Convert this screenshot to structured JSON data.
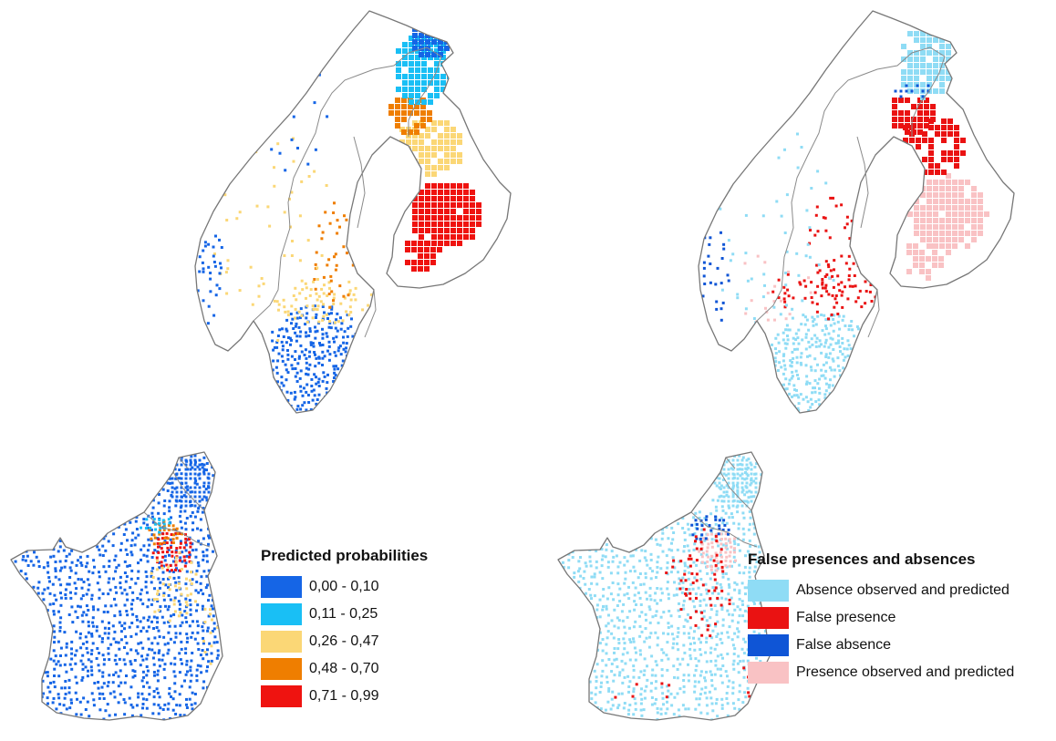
{
  "legends": {
    "predicted": {
      "title": "Predicted probabilities",
      "items": [
        {
          "label": "0,00 - 0,10",
          "color": "#1565e6"
        },
        {
          "label": "0,11 - 0,25",
          "color": "#19bff5"
        },
        {
          "label": "0,26 - 0,47",
          "color": "#fbd776"
        },
        {
          "label": "0,48 - 0,70",
          "color": "#ef7e00"
        },
        {
          "label": "0,71 - 0,99",
          "color": "#ef1310"
        }
      ]
    },
    "errors": {
      "title": "False presences and absences",
      "items": [
        {
          "label": "Absence observed and predicted",
          "color": "#8fdcf5"
        },
        {
          "label": "False presence",
          "color": "#ea1212"
        },
        {
          "label": "False absence",
          "color": "#0f55d6"
        },
        {
          "label": "Presence observed and predicted",
          "color": "#f9c2c4"
        }
      ]
    }
  },
  "maps": {
    "scandinavia_probabilities": {
      "region": "Fennoscandia",
      "variable": "predicted probability"
    },
    "scandinavia_errors": {
      "region": "Fennoscandia",
      "variable": "prediction error class"
    },
    "france_probabilities": {
      "region": "France and Benelux",
      "variable": "predicted probability"
    },
    "france_errors": {
      "region": "France and Benelux",
      "variable": "prediction error class"
    }
  },
  "colors": {
    "outline": "#8a8a8a",
    "coast": "#777777"
  }
}
